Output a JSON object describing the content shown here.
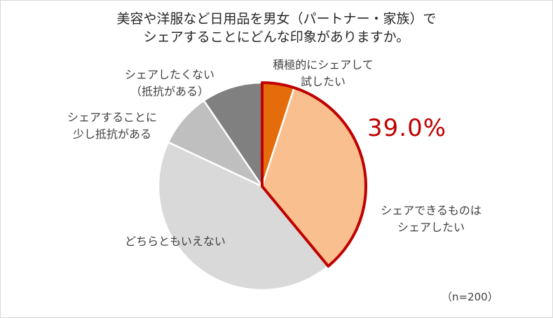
{
  "chart_data": {
    "type": "pie",
    "title_lines": [
      "美容や洋服など日用品を男女（パートナー・家族）で",
      "シェアすることにどんな印象がありますか。"
    ],
    "slices": [
      {
        "label_lines": [
          "積極的にシェアして",
          "試したい"
        ],
        "value": 5.0,
        "color": "#e46c0a"
      },
      {
        "label_lines": [
          "シェアできるものは",
          "シェアしたい"
        ],
        "value": 34.0,
        "color": "#f9bf8f"
      },
      {
        "label_lines": [
          "どちらともいえない"
        ],
        "value": 43.0,
        "color": "#d9d9d9"
      },
      {
        "label_lines": [
          "シェアすることに",
          "少し抵抗がある"
        ],
        "value": 8.5,
        "color": "#bfbfbf"
      },
      {
        "label_lines": [
          "シェアしたくない",
          "（抵抗がある）"
        ],
        "value": 9.5,
        "color": "#808080"
      }
    ],
    "highlight_total": "39.0%",
    "highlight_color": "#c00000",
    "sample_note": "（n=200）"
  }
}
